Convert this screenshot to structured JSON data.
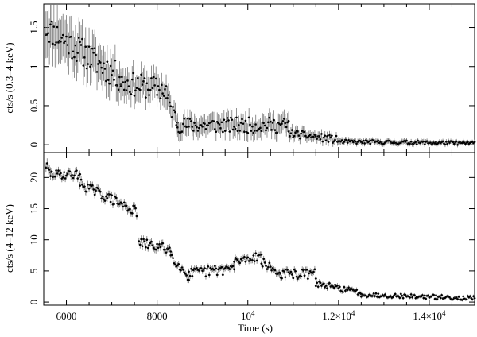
{
  "chart_data": [
    {
      "type": "scatter",
      "panel": "top",
      "ylabel": "cts/s (0.3–4 keV)",
      "xlim": [
        5500,
        15000
      ],
      "ylim": [
        -0.1,
        1.8
      ],
      "yticks": [
        {
          "value": 0,
          "label": "0"
        },
        {
          "value": 0.5,
          "label": "0.5"
        },
        {
          "value": 1,
          "label": "1"
        },
        {
          "value": 1.5,
          "label": "1.5"
        }
      ],
      "segments": [
        {
          "x": [
            5550,
            7200
          ],
          "y": [
            1.5,
            0.85
          ],
          "err": [
            0.3,
            0.2
          ],
          "noise": 0.18
        },
        {
          "x": [
            7200,
            8200
          ],
          "y": [
            0.8,
            0.7
          ],
          "err": [
            0.18,
            0.15
          ],
          "noise": 0.15
        },
        {
          "x": [
            8200,
            8450
          ],
          "y": [
            0.6,
            0.3
          ],
          "err": [
            0.15,
            0.12
          ],
          "noise": 0.12
        },
        {
          "x": [
            8450,
            10900
          ],
          "y": [
            0.25,
            0.25
          ],
          "err": [
            0.12,
            0.12
          ],
          "noise": 0.1
        },
        {
          "x": [
            10900,
            12000
          ],
          "y": [
            0.15,
            0.06
          ],
          "err": [
            0.08,
            0.05
          ],
          "noise": 0.05
        },
        {
          "x": [
            12000,
            15000
          ],
          "y": [
            0.04,
            0.02
          ],
          "err": [
            0.04,
            0.03
          ],
          "noise": 0.025
        }
      ]
    },
    {
      "type": "scatter",
      "panel": "bottom",
      "xlabel": "Time (s)",
      "ylabel": "cts/s (4–12 keV)",
      "xlim": [
        5500,
        15000
      ],
      "ylim": [
        -0.5,
        24
      ],
      "yticks": [
        {
          "value": 0,
          "label": "0"
        },
        {
          "value": 5,
          "label": "5"
        },
        {
          "value": 10,
          "label": "10"
        },
        {
          "value": 15,
          "label": "15"
        },
        {
          "value": 20,
          "label": "20"
        }
      ],
      "xticks": [
        {
          "value": 6000,
          "label": "6000"
        },
        {
          "value": 8000,
          "label": "8000"
        },
        {
          "value": 10000,
          "label": "10",
          "sup": "4"
        },
        {
          "value": 12000,
          "label": "1.2×10",
          "sup": "4"
        },
        {
          "value": 14000,
          "label": "1.4×10",
          "sup": "4"
        }
      ],
      "segments": [
        {
          "x": [
            5550,
            5650
          ],
          "y": [
            22,
            20.5
          ],
          "err": [
            0.8,
            0.8
          ],
          "noise": 0.8
        },
        {
          "x": [
            5650,
            6300
          ],
          "y": [
            20.5,
            20.5
          ],
          "err": [
            0.6,
            0.6
          ],
          "noise": 0.7
        },
        {
          "x": [
            6300,
            7550
          ],
          "y": [
            19,
            14.5
          ],
          "err": [
            0.6,
            0.6
          ],
          "noise": 0.8
        },
        {
          "x": [
            7600,
            8300
          ],
          "y": [
            9.5,
            8.5
          ],
          "err": [
            0.6,
            0.6
          ],
          "noise": 0.8
        },
        {
          "x": [
            8300,
            8700
          ],
          "y": [
            7.5,
            4
          ],
          "err": [
            0.5,
            0.5
          ],
          "noise": 0.7
        },
        {
          "x": [
            8700,
            9700
          ],
          "y": [
            4.5,
            5.5
          ],
          "err": [
            0.5,
            0.5
          ],
          "noise": 0.9
        },
        {
          "x": [
            9700,
            10300
          ],
          "y": [
            6.5,
            7.5
          ],
          "err": [
            0.5,
            0.5
          ],
          "noise": 0.7
        },
        {
          "x": [
            10300,
            10700
          ],
          "y": [
            6.5,
            4.5
          ],
          "err": [
            0.5,
            0.5
          ],
          "noise": 0.7
        },
        {
          "x": [
            10700,
            11500
          ],
          "y": [
            4.5,
            4.5
          ],
          "err": [
            0.5,
            0.5
          ],
          "noise": 0.8
        },
        {
          "x": [
            11500,
            12500
          ],
          "y": [
            3,
            1.5
          ],
          "err": [
            0.4,
            0.4
          ],
          "noise": 0.5
        },
        {
          "x": [
            12500,
            15000
          ],
          "y": [
            1.2,
            0.6
          ],
          "err": [
            0.3,
            0.25
          ],
          "noise": 0.35
        }
      ]
    }
  ]
}
